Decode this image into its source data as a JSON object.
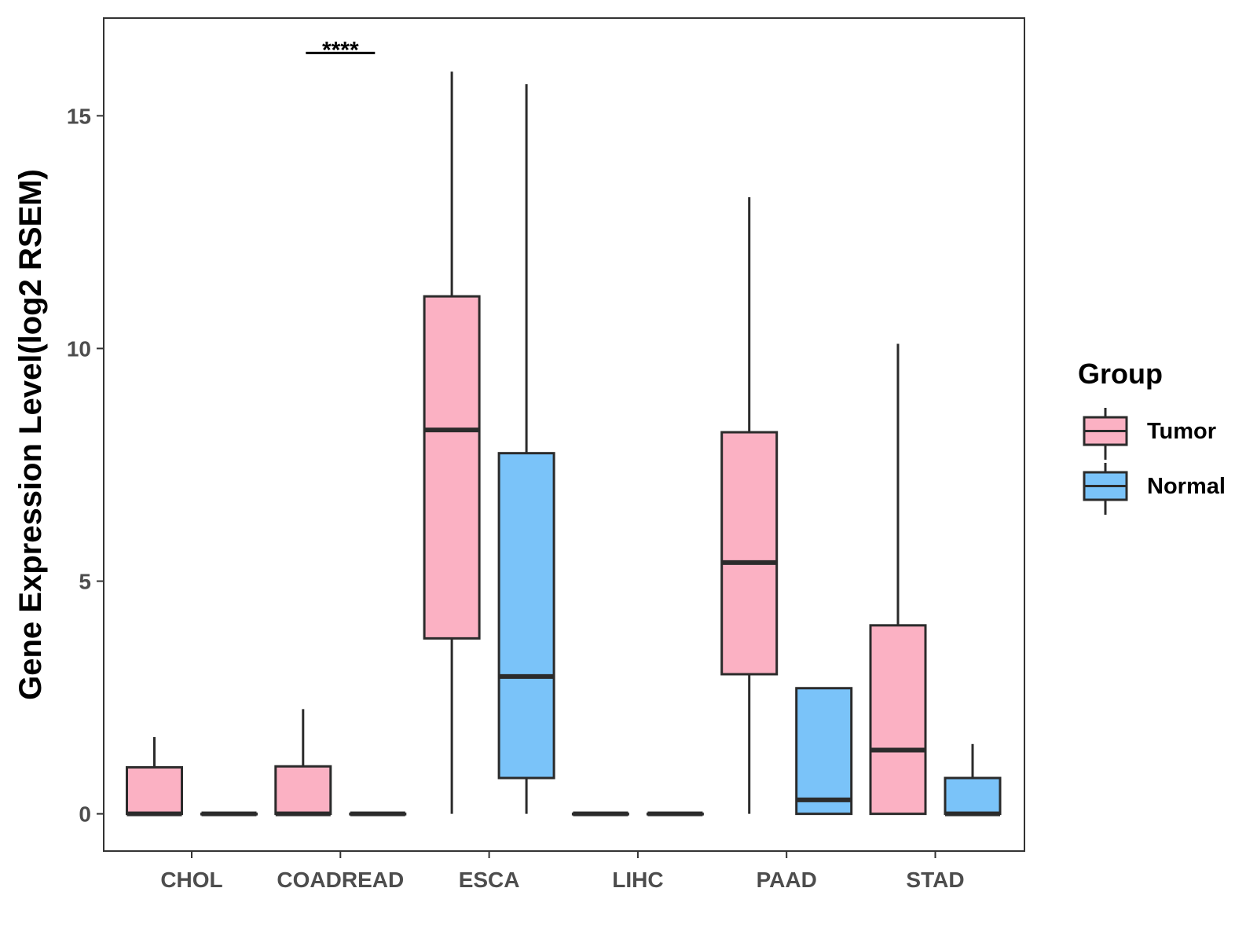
{
  "chart_data": {
    "type": "boxplot",
    "title": "",
    "xlabel": "",
    "ylabel": "Gene Expression Level(log2 RSEM)",
    "ylim": [
      -0.8,
      17.1
    ],
    "yticks": [
      0,
      5,
      10,
      15
    ],
    "ytick_labels": [
      "0",
      "5",
      "10",
      "15"
    ],
    "grid": false,
    "categories": [
      "CHOL",
      "COADREAD",
      "ESCA",
      "LIHC",
      "PAAD",
      "STAD"
    ],
    "legend": {
      "title": "Group",
      "position": "right",
      "entries": [
        {
          "name": "Tumor",
          "color": "#FBB1C3"
        },
        {
          "name": "Normal",
          "color": "#7AC3F9"
        }
      ]
    },
    "series": [
      {
        "name": "Tumor",
        "color": "#FBB1C3",
        "boxes": [
          {
            "category": "CHOL",
            "whisker_low": 0,
            "q1": 0,
            "median": 0,
            "q3": 1.0,
            "whisker_high": 1.65
          },
          {
            "category": "COADREAD",
            "whisker_low": 0,
            "q1": 0,
            "median": 0,
            "q3": 1.02,
            "whisker_high": 2.25
          },
          {
            "category": "ESCA",
            "whisker_low": 0,
            "q1": 3.77,
            "median": 8.25,
            "q3": 11.12,
            "whisker_high": 15.95
          },
          {
            "category": "LIHC",
            "whisker_low": 0,
            "q1": 0,
            "median": 0,
            "q3": 0,
            "whisker_high": 0
          },
          {
            "category": "PAAD",
            "whisker_low": 0,
            "q1": 3.0,
            "median": 5.4,
            "q3": 8.2,
            "whisker_high": 13.25
          },
          {
            "category": "STAD",
            "whisker_low": 0,
            "q1": 0,
            "median": 1.37,
            "q3": 4.05,
            "whisker_high": 10.1
          }
        ]
      },
      {
        "name": "Normal",
        "color": "#7AC3F9",
        "boxes": [
          {
            "category": "CHOL",
            "whisker_low": 0,
            "q1": 0,
            "median": 0,
            "q3": 0,
            "whisker_high": 0
          },
          {
            "category": "COADREAD",
            "whisker_low": 0,
            "q1": 0,
            "median": 0,
            "q3": 0,
            "whisker_high": 0
          },
          {
            "category": "ESCA",
            "whisker_low": 0,
            "q1": 0.77,
            "median": 2.95,
            "q3": 7.75,
            "whisker_high": 15.68
          },
          {
            "category": "LIHC",
            "whisker_low": 0,
            "q1": 0,
            "median": 0,
            "q3": 0,
            "whisker_high": 0
          },
          {
            "category": "PAAD",
            "whisker_low": 0,
            "q1": 0,
            "median": 0.3,
            "q3": 2.7,
            "whisker_high": 2.7
          },
          {
            "category": "STAD",
            "whisker_low": 0,
            "q1": 0,
            "median": 0,
            "q3": 0.77,
            "whisker_high": 1.5
          }
        ]
      }
    ],
    "annotations": [
      {
        "category": "COADREAD",
        "text": "****",
        "y": 16.35
      }
    ]
  }
}
